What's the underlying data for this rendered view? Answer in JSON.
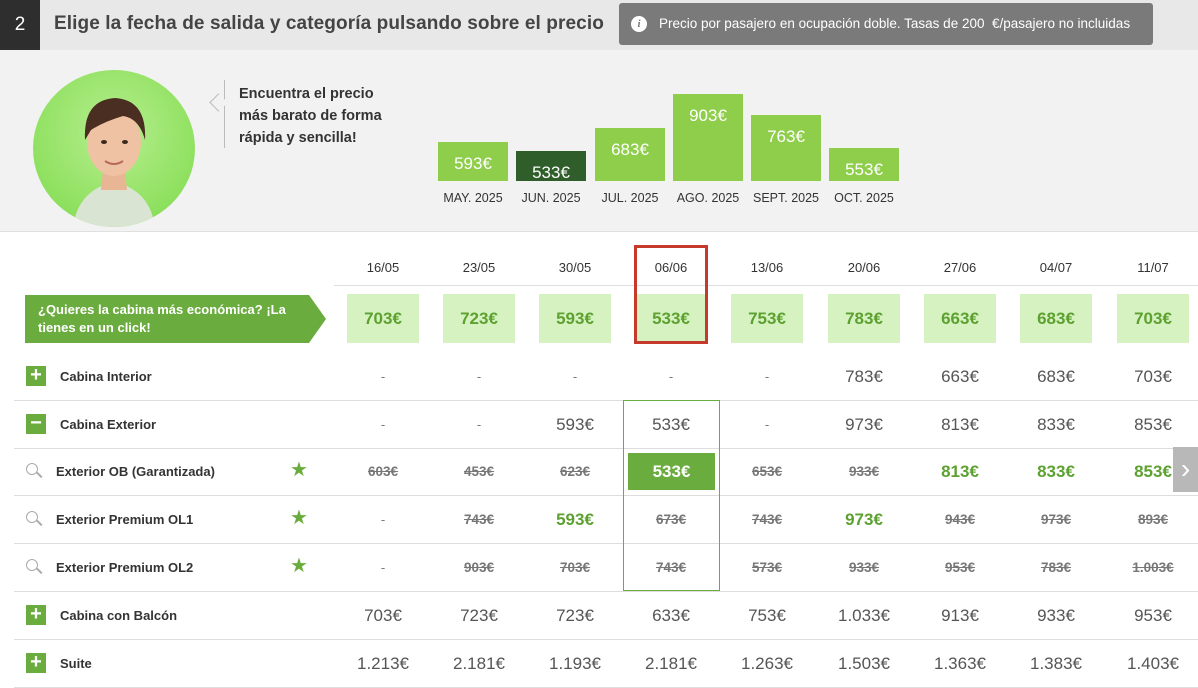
{
  "header": {
    "step": "2",
    "title": "Elige la fecha de salida y categoría pulsando sobre el precio",
    "info_icon": "info-icon",
    "info_text": "Precio por pasajero en ocupación doble. Tasas de 200  €/pasajero no incluidas"
  },
  "promo": {
    "text": "Encuentra el precio más barato de forma rápida y sencilla!",
    "months": [
      {
        "label": "MAY. 2025",
        "price": "593€",
        "value": 593,
        "selected": false
      },
      {
        "label": "JUN. 2025",
        "price": "533€",
        "value": 533,
        "selected": true
      },
      {
        "label": "JUL. 2025",
        "price": "683€",
        "value": 683,
        "selected": false
      },
      {
        "label": "AGO. 2025",
        "price": "903€",
        "value": 903,
        "selected": false
      },
      {
        "label": "SEPT. 2025",
        "price": "763€",
        "value": 763,
        "selected": false
      },
      {
        "label": "OCT. 2025",
        "price": "553€",
        "value": 553,
        "selected": false
      }
    ]
  },
  "dates": [
    "16/05",
    "23/05",
    "30/05",
    "06/06",
    "13/06",
    "20/06",
    "27/06",
    "04/07",
    "11/07"
  ],
  "cheapest": {
    "label": "¿Quieres la cabina más económica? ¡La tienes en un click!",
    "prices": [
      "703€",
      "723€",
      "593€",
      "533€",
      "753€",
      "783€",
      "663€",
      "683€",
      "703€"
    ]
  },
  "rows": [
    {
      "label": "Cabina Interior",
      "type": "category",
      "icon": "plus-icon",
      "prices": [
        "-",
        "-",
        "-",
        "-",
        "-",
        "783€",
        "663€",
        "683€",
        "703€"
      ]
    },
    {
      "label": "Cabina Exterior",
      "type": "category",
      "icon": "minus-icon",
      "prices": [
        "-",
        "-",
        "593€",
        "533€",
        "-",
        "973€",
        "813€",
        "833€",
        "853€"
      ]
    },
    {
      "label": "Exterior OB (Garantizada)",
      "type": "sub",
      "icon": "search-icon",
      "star": "star-icon",
      "prices": [
        "603€",
        "453€",
        "623€",
        "533€",
        "653€",
        "933€",
        "813€",
        "833€",
        "853€"
      ],
      "styles": [
        "s",
        "s",
        "s",
        "sel",
        "s",
        "s",
        "g",
        "g",
        "g"
      ]
    },
    {
      "label": "Exterior Premium OL1",
      "type": "sub",
      "icon": "search-icon",
      "star": "star-icon",
      "prices": [
        "-",
        "743€",
        "593€",
        "673€",
        "743€",
        "973€",
        "943€",
        "973€",
        "893€"
      ],
      "styles": [
        "d",
        "s",
        "g",
        "s",
        "s",
        "g",
        "s",
        "s",
        "s"
      ]
    },
    {
      "label": "Exterior Premium OL2",
      "type": "sub",
      "icon": "search-icon",
      "star": "star-icon",
      "prices": [
        "-",
        "903€",
        "703€",
        "743€",
        "573€",
        "933€",
        "953€",
        "783€",
        "1.003€"
      ],
      "styles": [
        "d",
        "s",
        "s",
        "s",
        "s",
        "s",
        "s",
        "s",
        "s"
      ]
    },
    {
      "label": "Cabina con Balcón",
      "type": "category",
      "icon": "plus-icon",
      "prices": [
        "703€",
        "723€",
        "723€",
        "633€",
        "753€",
        "1.033€",
        "913€",
        "933€",
        "953€"
      ]
    },
    {
      "label": "Suite",
      "type": "category",
      "icon": "plus-icon",
      "prices": [
        "1.213€",
        "2.181€",
        "1.193€",
        "2.181€",
        "1.263€",
        "1.503€",
        "1.363€",
        "1.383€",
        "1.403€"
      ]
    }
  ],
  "next_icon": "chevron-right-icon"
}
